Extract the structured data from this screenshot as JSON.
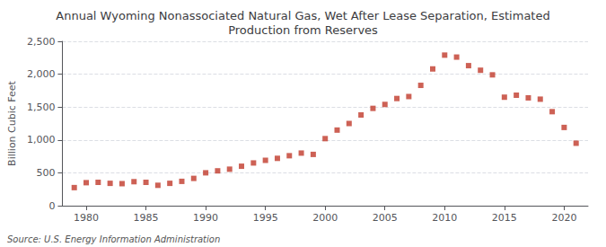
{
  "chart_data": {
    "type": "scatter",
    "title": "Annual Wyoming Nonassociated Natural Gas, Wet After Lease Separation, Estimated\nProduction from Reserves",
    "ylabel": "Billion Cubic Feet",
    "source": "Source: U.S. Energy Information Administration",
    "color": "#c0392b",
    "marker": "square",
    "x": [
      1979,
      1980,
      1981,
      1982,
      1983,
      1984,
      1985,
      1986,
      1987,
      1988,
      1989,
      1990,
      1991,
      1992,
      1993,
      1994,
      1995,
      1996,
      1997,
      1998,
      1999,
      2000,
      2001,
      2002,
      2003,
      2004,
      2005,
      2006,
      2007,
      2008,
      2009,
      2010,
      2011,
      2012,
      2013,
      2014,
      2015,
      2016,
      2017,
      2018,
      2019,
      2020,
      2021
    ],
    "values": [
      275,
      350,
      355,
      340,
      335,
      365,
      355,
      310,
      340,
      370,
      415,
      500,
      530,
      555,
      600,
      650,
      690,
      720,
      760,
      800,
      780,
      1020,
      1150,
      1250,
      1380,
      1480,
      1540,
      1630,
      1660,
      1830,
      2080,
      2290,
      2260,
      2130,
      2060,
      1990,
      1650,
      1680,
      1640,
      1620,
      1430,
      1190,
      950
    ],
    "xlim": [
      1978,
      2022
    ],
    "xticks": [
      1980,
      1985,
      1990,
      1995,
      2000,
      2005,
      2010,
      2015,
      2020
    ],
    "ylim": [
      0,
      2500
    ],
    "yticks": [
      0,
      500,
      {
        "value": 1000,
        "label": "1,000"
      },
      {
        "value": 1500,
        "label": "1,500"
      },
      {
        "value": 2000,
        "label": "2,000"
      },
      {
        "value": 2500,
        "label": "2,500"
      }
    ],
    "grid": true
  }
}
